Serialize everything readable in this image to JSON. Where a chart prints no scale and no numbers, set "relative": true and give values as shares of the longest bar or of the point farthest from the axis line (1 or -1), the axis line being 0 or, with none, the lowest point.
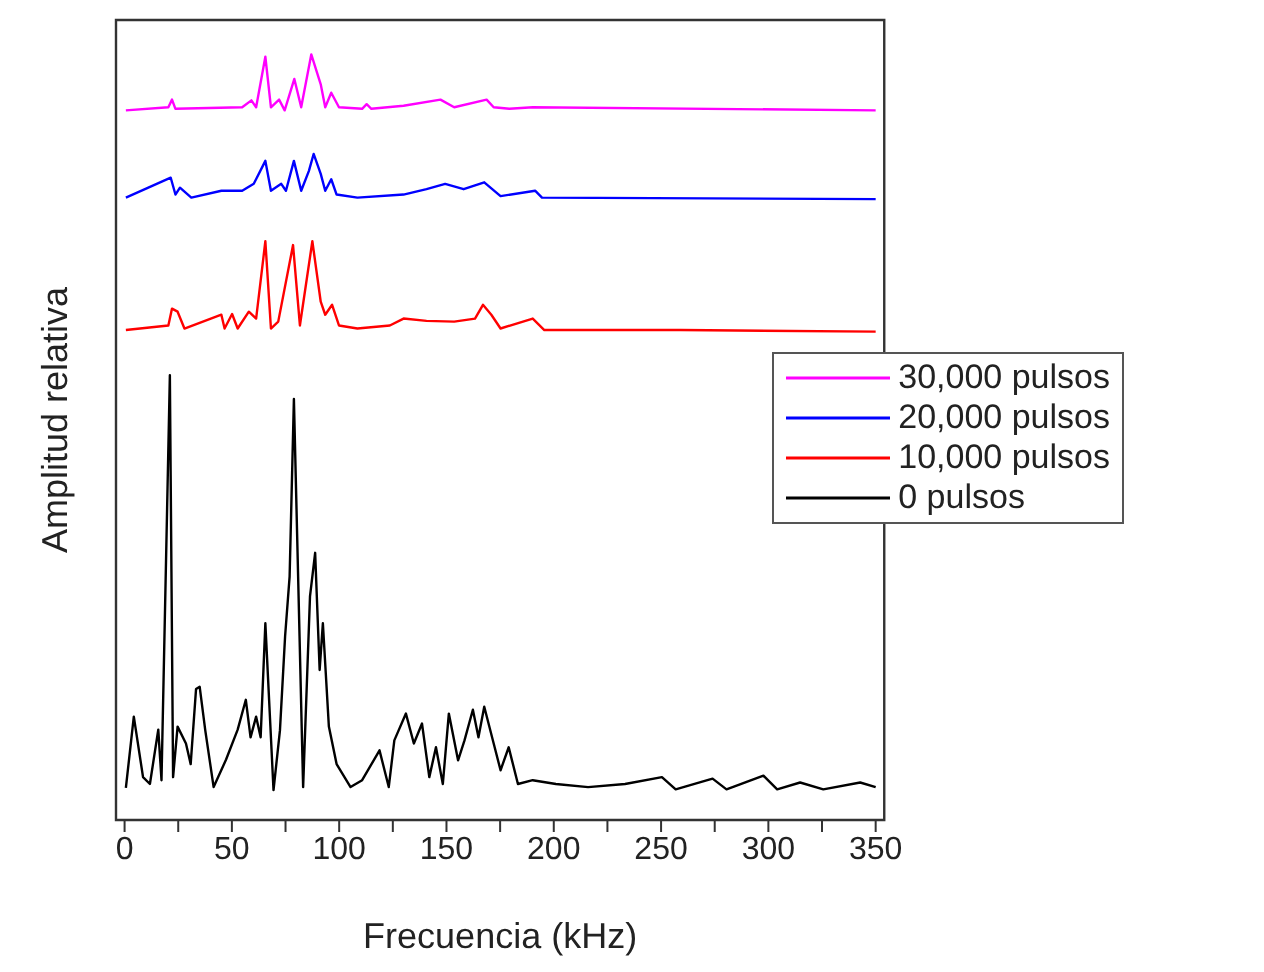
{
  "chart_data": {
    "type": "line",
    "xlabel": "Frecuencia (kHz)",
    "ylabel": "Amplitud relativa",
    "relative": true,
    "legend": "right",
    "tick_labels": "x",
    "xlim": [
      -4,
      354
    ],
    "xticks": [
      0,
      {
        "value": 25,
        "label": null
      },
      50,
      {
        "value": 75,
        "label": null
      },
      100,
      {
        "value": 125,
        "label": null
      },
      150,
      {
        "value": 175,
        "label": null
      },
      200,
      {
        "value": 225,
        "label": null
      },
      250,
      {
        "value": 275,
        "label": null
      },
      300,
      {
        "value": 325,
        "label": null
      },
      350
    ],
    "series": [
      {
        "name": "30,000 pulsos",
        "color": "#ff00ff",
        "x": [
          0.6,
          20.4,
          22.1,
          23.7,
          54.8,
          59.1,
          61.3,
          65.6,
          68.2,
          72.0,
          74.6,
          79.1,
          82.3,
          87.0,
          91.4,
          93.5,
          96.3,
          99.9,
          110.7,
          112.8,
          115.0,
          130.0,
          147.2,
          153.6,
          168.7,
          172.0,
          179.3,
          190.2,
          350
        ],
        "values": [
          0.927,
          0.931,
          0.941,
          0.929,
          0.931,
          0.94,
          0.931,
          0.997,
          0.931,
          0.941,
          0.927,
          0.968,
          0.931,
          1,
          0.961,
          0.931,
          0.95,
          0.931,
          0.929,
          0.935,
          0.929,
          0.933,
          0.941,
          0.931,
          0.941,
          0.931,
          0.929,
          0.931,
          0.927
        ]
      },
      {
        "name": "20,000 pulsos",
        "color": "#0000ff",
        "x": [
          0.6,
          21.5,
          23.7,
          25.8,
          31.1,
          45.1,
          54.8,
          60.2,
          65.6,
          68.2,
          73.0,
          75.2,
          78.9,
          82.3,
          85.9,
          88.1,
          91.4,
          93.5,
          96.3,
          98.8,
          108.5,
          130.0,
          140.7,
          149.4,
          158.0,
          167.6,
          175.2,
          191.3,
          194.5,
          350
        ],
        "values": [
          0.813,
          0.839,
          0.817,
          0.826,
          0.813,
          0.822,
          0.822,
          0.831,
          0.861,
          0.822,
          0.831,
          0.822,
          0.861,
          0.822,
          0.848,
          0.87,
          0.844,
          0.822,
          0.837,
          0.817,
          0.813,
          0.817,
          0.824,
          0.831,
          0.824,
          0.833,
          0.815,
          0.822,
          0.813,
          0.811
        ]
      },
      {
        "name": "10,000 pulsos",
        "color": "#ff0000",
        "x": [
          0.6,
          20.4,
          22.1,
          24.7,
          27.9,
          45.1,
          46.6,
          50.1,
          52.7,
          57.9,
          61.3,
          65.6,
          68.2,
          71.6,
          78.5,
          81.7,
          87.5,
          91.4,
          93.5,
          96.7,
          99.9,
          108.5,
          123.6,
          130.0,
          140.7,
          153.6,
          163.3,
          167.0,
          170.9,
          175.2,
          190.2,
          195.6,
          259.0,
          350
        ],
        "values": [
          0.64,
          0.646,
          0.668,
          0.664,
          0.642,
          0.66,
          0.642,
          0.661,
          0.642,
          0.664,
          0.655,
          0.756,
          0.642,
          0.651,
          0.751,
          0.646,
          0.756,
          0.677,
          0.66,
          0.673,
          0.646,
          0.642,
          0.646,
          0.655,
          0.652,
          0.651,
          0.655,
          0.673,
          0.66,
          0.642,
          0.655,
          0.64,
          0.64,
          0.638
        ]
      },
      {
        "name": "0 pulsos",
        "color": "#000000",
        "x": [
          0.6,
          4.3,
          8.6,
          11.8,
          15.7,
          17.2,
          21.1,
          22.6,
          24.7,
          28.6,
          30.8,
          33.3,
          35.0,
          37.6,
          41.5,
          47.3,
          52.7,
          56.5,
          58.7,
          61.3,
          63.4,
          65.6,
          69.4,
          72.4,
          74.8,
          76.9,
          78.9,
          83.2,
          86.4,
          88.8,
          90.9,
          92.4,
          95.2,
          98.8,
          105.3,
          110.7,
          118.8,
          123.1,
          125.7,
          131.1,
          134.8,
          138.6,
          142.0,
          145.1,
          148.3,
          151.1,
          155.4,
          158.4,
          162.3,
          164.9,
          167.6,
          172.0,
          175.2,
          179.0,
          183.3,
          190.2,
          201.0,
          216.0,
          233.2,
          250.4,
          256.8,
          274.0,
          280.5,
          297.7,
          304.1,
          314.8,
          325.6,
          342.8,
          350
        ],
        "values": [
          0.042,
          0.135,
          0.056,
          0.047,
          0.118,
          0.052,
          0.581,
          0.056,
          0.122,
          0.1,
          0.073,
          0.171,
          0.174,
          0.117,
          0.043,
          0.079,
          0.118,
          0.157,
          0.108,
          0.135,
          0.108,
          0.257,
          0.039,
          0.117,
          0.24,
          0.318,
          0.55,
          0.043,
          0.292,
          0.349,
          0.196,
          0.257,
          0.122,
          0.073,
          0.043,
          0.052,
          0.091,
          0.043,
          0.104,
          0.139,
          0.1,
          0.126,
          0.056,
          0.095,
          0.047,
          0.139,
          0.078,
          0.104,
          0.144,
          0.108,
          0.148,
          0.1,
          0.065,
          0.095,
          0.047,
          0.052,
          0.047,
          0.043,
          0.047,
          0.056,
          0.04,
          0.054,
          0.04,
          0.058,
          0.04,
          0.049,
          0.04,
          0.049,
          0.043
        ]
      }
    ]
  }
}
